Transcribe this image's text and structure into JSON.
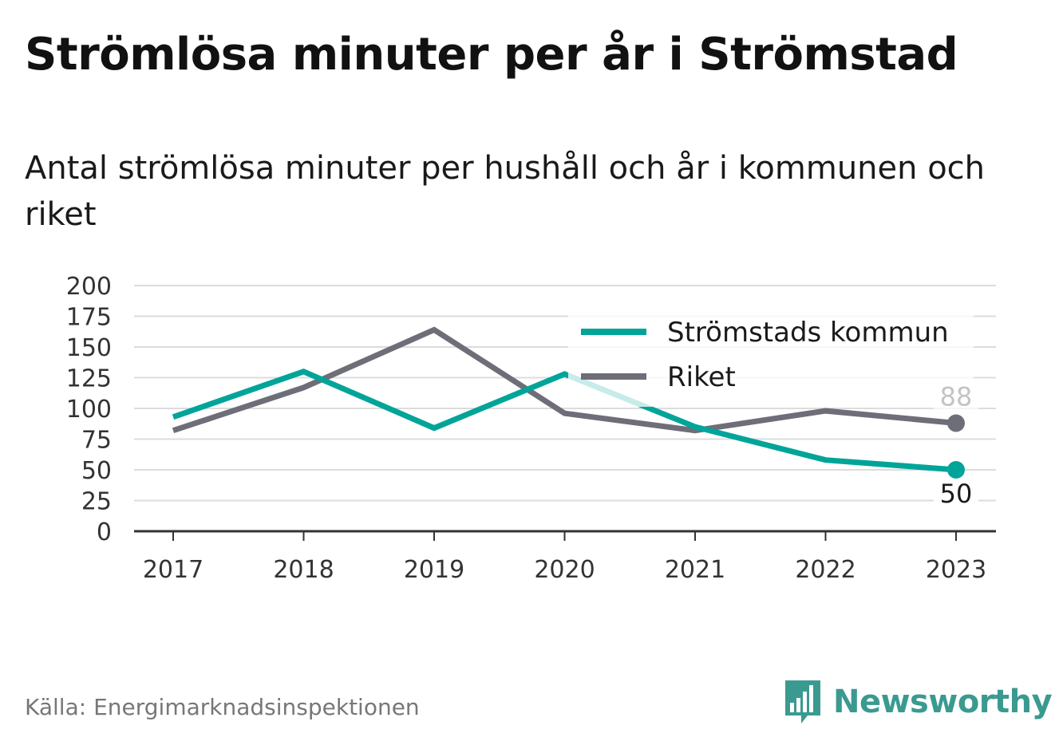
{
  "title": "Strömlösa minuter per år i Strömstad",
  "subtitle": "Antal strömlösa minuter per hushåll och år i kommunen och riket",
  "source": "Källa: Energimarknadsinspektionen",
  "brand": {
    "name": "Newsworthy",
    "icon": "newsworthy-logo-icon",
    "color": "#3a9a90"
  },
  "chart_data": {
    "type": "line",
    "x": [
      "2017",
      "2018",
      "2019",
      "2020",
      "2021",
      "2022",
      "2023"
    ],
    "ylim": [
      0,
      200
    ],
    "yticks": [
      0,
      25,
      50,
      75,
      100,
      125,
      150,
      175,
      200
    ],
    "grid": true,
    "legend_position": "top-right",
    "series": [
      {
        "name": "Strömstads kommun",
        "color": "#00a499",
        "values": [
          93,
          130,
          84,
          128,
          85,
          58,
          50
        ],
        "end_label": "50"
      },
      {
        "name": "Riket",
        "color": "#6e6e78",
        "values": [
          82,
          117,
          164,
          96,
          82,
          98,
          88
        ],
        "end_label": "88"
      }
    ]
  }
}
